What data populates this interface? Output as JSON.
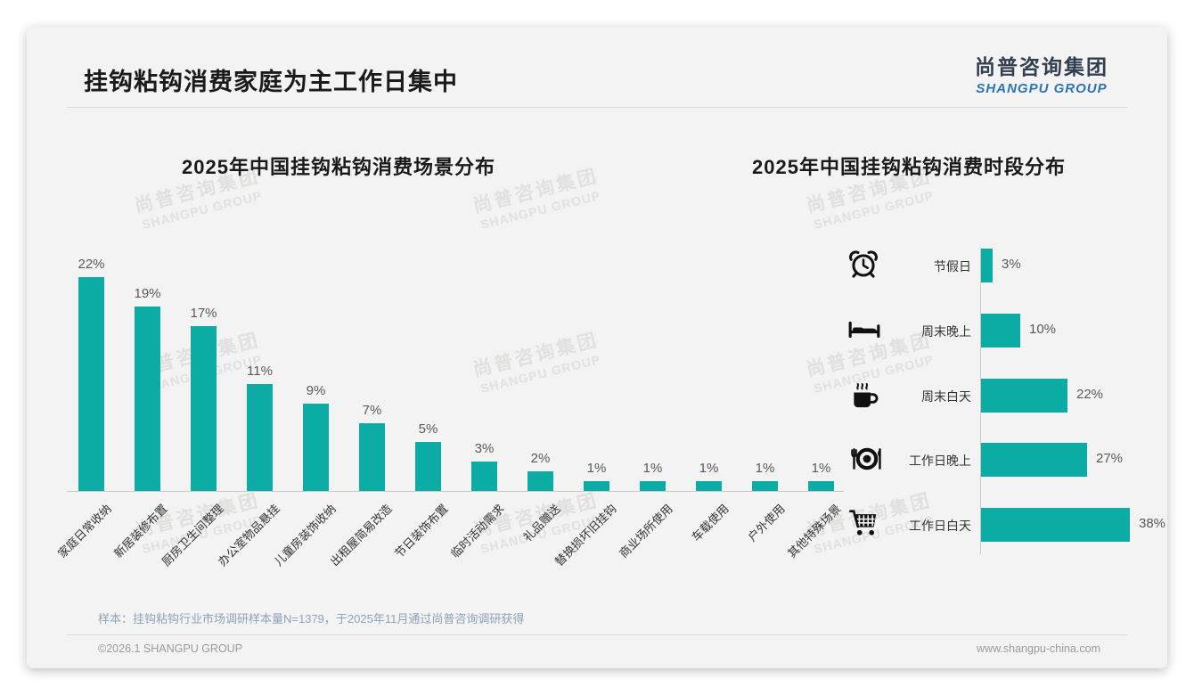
{
  "page": {
    "title": "挂钩粘钩消费家庭为主工作日集中",
    "logo": {
      "cn": "尚普咨询集团",
      "en": "SHANGPU GROUP"
    },
    "watermark": {
      "cn": "尚普咨询集团",
      "en": "SHANGPU GROUP"
    },
    "footer": {
      "source": "样本：挂钩粘钩行业市场调研样本量N=1379，于2025年11月通过尚普咨询调研获得",
      "copyright": "©2026.1 SHANGPU GROUP",
      "website": "www.shangpu-china.com"
    },
    "colors": {
      "accent_teal": "#0aaca4",
      "logo_navy": "#333f50",
      "logo_blue": "#2e74b5",
      "card_bg": "#f2f3f2"
    }
  },
  "chart_data": [
    {
      "type": "bar",
      "orientation": "vertical",
      "title": "2025年中国挂钩粘钩消费场景分布",
      "categories": [
        "家庭日常收纳",
        "新居装修布置",
        "厨房卫生间整理",
        "办公室物品悬挂",
        "儿童房装饰收纳",
        "出租屋简易改造",
        "节日装饰布置",
        "临时活动需求",
        "礼品赠送",
        "替换损坏旧挂钩",
        "商业场所使用",
        "车载使用",
        "户外使用",
        "其他特殊场景"
      ],
      "values": [
        22,
        19,
        17,
        11,
        9,
        7,
        5,
        3,
        2,
        1,
        1,
        1,
        1,
        1
      ],
      "data_labels": [
        "22%",
        "19%",
        "17%",
        "11%",
        "9%",
        "7%",
        "5%",
        "3%",
        "2%",
        "1%",
        "1%",
        "1%",
        "1%",
        "1%"
      ],
      "unit": "%",
      "ylim": [
        0,
        22
      ],
      "grid": false,
      "bar_color": "#0aaca4"
    },
    {
      "type": "bar",
      "orientation": "horizontal",
      "title": "2025年中国挂钩粘钩消费时段分布",
      "categories": [
        "节假日",
        "周末晚上",
        "周末白天",
        "工作日晚上",
        "工作日白天"
      ],
      "values": [
        3,
        10,
        22,
        27,
        38
      ],
      "data_labels": [
        "3%",
        "10%",
        "22%",
        "27%",
        "38%"
      ],
      "icons": [
        "alarm-clock",
        "bed",
        "coffee",
        "dining",
        "shopping-cart"
      ],
      "unit": "%",
      "xlim": [
        0,
        40
      ],
      "grid": false,
      "bar_color": "#0aaca4"
    }
  ]
}
